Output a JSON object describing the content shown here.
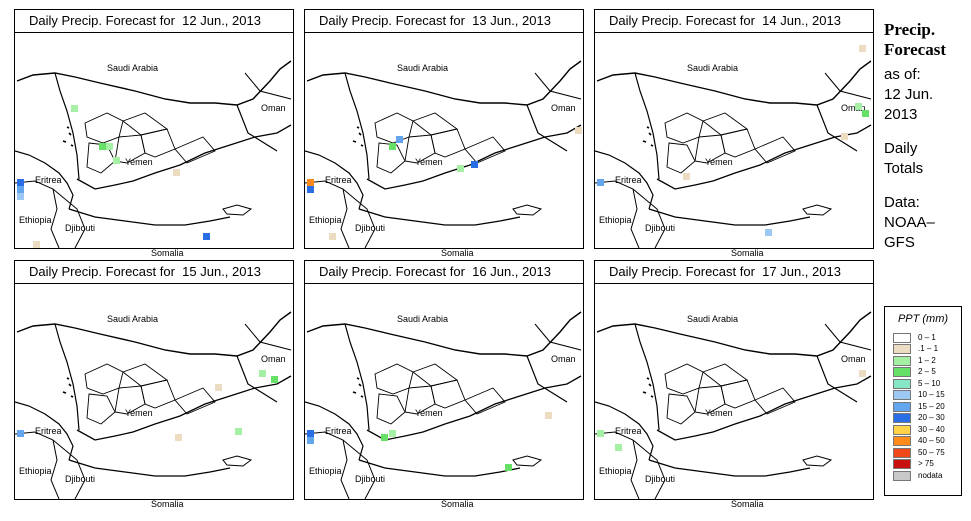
{
  "panels": [
    {
      "title": "Daily Precip. Forecast for  12 Jun., 2013"
    },
    {
      "title": "Daily Precip. Forecast for  13 Jun., 2013"
    },
    {
      "title": "Daily Precip. Forecast for  14 Jun., 2013"
    },
    {
      "title": "Daily Precip. Forecast for  15 Jun., 2013"
    },
    {
      "title": "Daily Precip. Forecast for  16 Jun., 2013"
    },
    {
      "title": "Daily Precip. Forecast for  17 Jun., 2013"
    }
  ],
  "map_labels": {
    "saudi": "Saudi Arabia",
    "oman": "Oman",
    "yemen": "Yemen",
    "eritrea": "Eritrea",
    "ethiopia": "Ethiopia",
    "djibouti": "Djibouti",
    "somalia": "Somalia"
  },
  "sidebar": {
    "title_line1": "Precip.",
    "title_line2": "Forecast",
    "asof_line1": "as of:",
    "asof_line2": "12 Jun.",
    "asof_line3": "2013",
    "totals_line1": "Daily",
    "totals_line2": "Totals",
    "data_line1": "Data:",
    "data_line2": "NOAA–",
    "data_line3": "GFS"
  },
  "legend": {
    "title": "PPT (mm)",
    "items": [
      {
        "label": "0 – 1",
        "color": "#ffffff"
      },
      {
        "label": ".1 – 1",
        "color": "#ecdcc2"
      },
      {
        "label": "1 – 2",
        "color": "#a6f0a6"
      },
      {
        "label": "2 – 5",
        "color": "#66e066"
      },
      {
        "label": "5 – 10",
        "color": "#86e6c6"
      },
      {
        "label": "10 – 15",
        "color": "#9cc8f4"
      },
      {
        "label": "15 – 20",
        "color": "#64a6ee"
      },
      {
        "label": "20 – 30",
        "color": "#2a6ee6"
      },
      {
        "label": "30 – 40",
        "color": "#ffd24a"
      },
      {
        "label": "40 – 50",
        "color": "#ff8c1a"
      },
      {
        "label": "50 – 75",
        "color": "#f04818"
      },
      {
        "label": "> 75",
        "color": "#c81010"
      },
      {
        "label": "nodata",
        "color": "#c8c8c8"
      }
    ]
  }
}
